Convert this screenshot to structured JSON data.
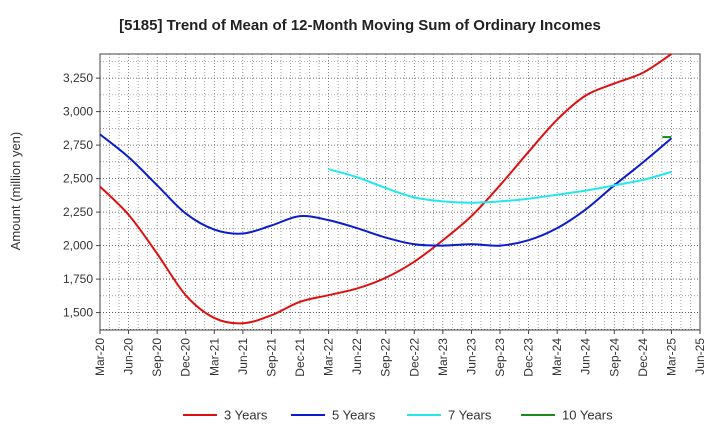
{
  "chart_data": {
    "type": "line",
    "title": "[5185]  Trend of Mean of 12-Month Moving Sum of Ordinary Incomes",
    "xlabel": "",
    "ylabel": "Amount (million yen)",
    "categories": [
      "Mar-20",
      "Jun-20",
      "Sep-20",
      "Dec-20",
      "Mar-21",
      "Jun-21",
      "Sep-21",
      "Dec-21",
      "Mar-22",
      "Jun-22",
      "Sep-22",
      "Dec-22",
      "Mar-23",
      "Jun-23",
      "Sep-23",
      "Dec-23",
      "Mar-24",
      "Jun-24",
      "Sep-24",
      "Dec-24",
      "Mar-25",
      "Jun-25"
    ],
    "yticks": [
      1500,
      1750,
      2000,
      2250,
      2500,
      2750,
      3000,
      3250
    ],
    "ytick_labels": [
      "1,500",
      "1,750",
      "2,000",
      "2,250",
      "2,500",
      "2,750",
      "3,000",
      "3,250"
    ],
    "ylim": [
      1370,
      3430
    ],
    "grid": true,
    "legend_position": "bottom",
    "series": [
      {
        "name": "3 Years",
        "color": "#dd1111",
        "values": [
          2440,
          2230,
          1940,
          1630,
          1460,
          1420,
          1480,
          1580,
          1630,
          1680,
          1760,
          1880,
          2040,
          2220,
          2450,
          2700,
          2940,
          3120,
          3210,
          3290,
          3430,
          null
        ]
      },
      {
        "name": "5 Years",
        "color": "#0a1ccc",
        "values": [
          2830,
          2660,
          2450,
          2240,
          2120,
          2090,
          2150,
          2220,
          2190,
          2130,
          2060,
          2010,
          2000,
          2010,
          2000,
          2040,
          2130,
          2270,
          2450,
          2620,
          2800,
          null
        ]
      },
      {
        "name": "7 Years",
        "color": "#22e8ec",
        "values": [
          null,
          null,
          null,
          null,
          null,
          null,
          null,
          null,
          2570,
          2510,
          2430,
          2360,
          2330,
          2320,
          2330,
          2350,
          2380,
          2410,
          2450,
          2490,
          2550,
          null
        ]
      },
      {
        "name": "10 Years",
        "color": "#1a8a1a",
        "values": [
          null,
          null,
          null,
          null,
          null,
          null,
          null,
          null,
          null,
          null,
          null,
          null,
          null,
          null,
          null,
          null,
          null,
          null,
          null,
          null,
          2810,
          null
        ]
      }
    ]
  }
}
